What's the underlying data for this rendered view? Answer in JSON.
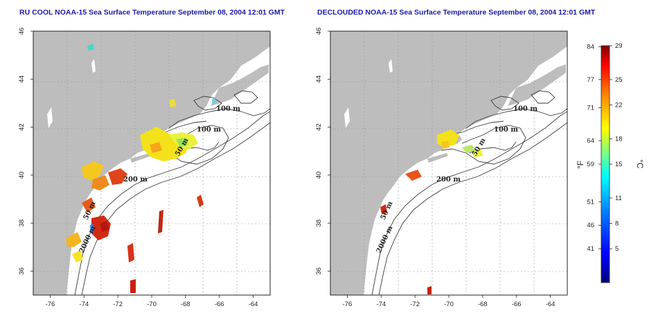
{
  "panels": [
    {
      "title": "RU COOL NOAA-15 Sea Surface Temperature September 08, 2004 12:01 GMT",
      "contour_labels": [
        "100 m",
        "100 m",
        "50 m",
        "200 m",
        "50 m",
        "2000 m"
      ]
    },
    {
      "title": "DECLOUDED NOAA-15 Sea Surface Temperature September 08, 2004 12:01 GMT",
      "contour_labels": [
        "100 m",
        "100 m",
        "50 m",
        "200 m",
        "50 m",
        "2000 m"
      ]
    }
  ],
  "axes": {
    "lon_ticks": [
      "-76",
      "-74",
      "-72",
      "-70",
      "-68",
      "-66",
      "-64"
    ],
    "lat_ticks": [
      "36",
      "38",
      "40",
      "42",
      "44",
      "46"
    ]
  },
  "colorbar": {
    "fahrenheit_ticks": [
      "84",
      "77",
      "71",
      "64",
      "59",
      "51",
      "46",
      "41"
    ],
    "celsius_ticks": [
      "29",
      "25",
      "22",
      "18",
      "15",
      "11",
      "8",
      "5"
    ],
    "fahrenheit_unit": "°F",
    "celsius_unit": "°C",
    "colors": [
      "#00007f",
      "#0000ff",
      "#007fff",
      "#00ffff",
      "#7fff7f",
      "#ffff00",
      "#ff7f00",
      "#ff0000",
      "#7f0000"
    ]
  },
  "colors": {
    "land": "#bdbdbd",
    "ocean": "#ffffff",
    "title": "#1a1aa6",
    "grid": "#9a9a9a"
  }
}
